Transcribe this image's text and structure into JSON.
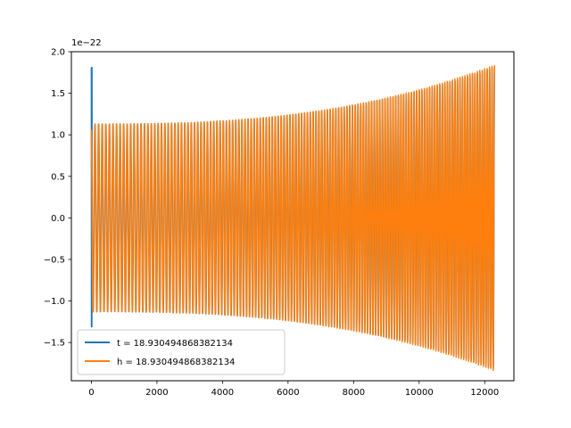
{
  "chart_data": {
    "type": "line",
    "title": "",
    "xlabel": "",
    "ylabel": "",
    "xlim": [
      -610,
      12890
    ],
    "ylim": [
      -1.96e-22,
      2e-22
    ],
    "x_ticks": [
      0,
      2000,
      4000,
      6000,
      8000,
      10000,
      12000
    ],
    "x_tick_labels": [
      "0",
      "2000",
      "4000",
      "6000",
      "8000",
      "10000",
      "12000"
    ],
    "y_ticks": [
      -1.5e-22,
      -1e-22,
      -5e-23,
      0,
      5e-23,
      1e-22,
      1.5e-22,
      2e-22
    ],
    "y_tick_labels": [
      "−1.5",
      "−1.0",
      "−0.5",
      "0.0",
      "0.5",
      "1.0",
      "1.5",
      "2.0"
    ],
    "y_offset_text": "1e−22",
    "grid": false,
    "legend_position": "lower-left",
    "series": [
      {
        "name": "t = 18.930494868382134",
        "color": "#1f77b4",
        "x_range": [
          0,
          12300
        ],
        "initial_peak": 1.81e-22,
        "initial_trough": -1.31e-22,
        "amplitude_start": 1.13e-22,
        "amplitude_end": 1.82e-22
      },
      {
        "name": "h = 18.930494868382134",
        "color": "#ff7f0e",
        "x_range": [
          0,
          12300
        ],
        "amplitude_start": 1.13e-22,
        "amplitude_end": 1.84e-22
      }
    ]
  }
}
